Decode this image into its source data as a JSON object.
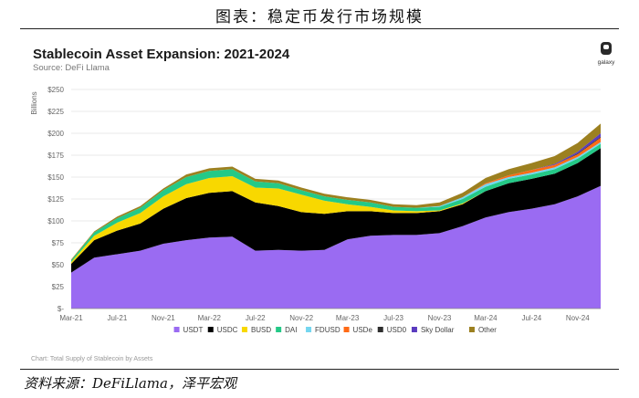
{
  "caption": "图表：稳定币发行市场规模",
  "source_note": "资料来源：DeFiLlama，泽平宏观",
  "chart_data": {
    "type": "area",
    "stacked": true,
    "title": "Stablecoin Asset Expansion: 2021-2024",
    "subtitle": "Source: DeFi Llama",
    "ylabel": "Billions",
    "ylim": [
      0,
      250
    ],
    "y_ticks": [
      "$-",
      "$25",
      "$50",
      "$75",
      "$100",
      "$125",
      "$150",
      "$175",
      "$200",
      "$225",
      "$250"
    ],
    "x_tick_labels": [
      "Mar-21",
      "Jul-21",
      "Nov-21",
      "Mar-22",
      "Jul-22",
      "Nov-22",
      "Mar-23",
      "Jul-23",
      "Nov-23",
      "Mar-24",
      "Jul-24",
      "Nov-24"
    ],
    "x": [
      "Mar-21",
      "May-21",
      "Jul-21",
      "Sep-21",
      "Nov-21",
      "Jan-22",
      "Mar-22",
      "May-22",
      "Jul-22",
      "Sep-22",
      "Nov-22",
      "Jan-23",
      "Mar-23",
      "May-23",
      "Jul-23",
      "Sep-23",
      "Nov-23",
      "Jan-24",
      "Mar-24",
      "May-24",
      "Jul-24",
      "Sep-24",
      "Nov-24",
      "Dec-24"
    ],
    "series": [
      {
        "name": "USDT",
        "color": "#9a6bf2",
        "values": [
          41,
          58,
          62,
          66,
          74,
          78,
          81,
          82,
          66,
          67,
          66,
          67,
          79,
          83,
          84,
          84,
          86,
          94,
          104,
          110,
          114,
          119,
          128,
          140
        ]
      },
      {
        "name": "USDC",
        "color": "#000000",
        "values": [
          10,
          20,
          27,
          31,
          40,
          48,
          51,
          52,
          55,
          50,
          44,
          41,
          32,
          28,
          25,
          25,
          25,
          25,
          30,
          33,
          34,
          35,
          38,
          43
        ]
      },
      {
        "name": "BUSD",
        "color": "#f8d800",
        "values": [
          2,
          5,
          9,
          12,
          14,
          16,
          17,
          17,
          17,
          20,
          20,
          15,
          8,
          5,
          3,
          2,
          1,
          1,
          0,
          0,
          0,
          0,
          0,
          0
        ]
      },
      {
        "name": "DAI",
        "color": "#24c987",
        "values": [
          2,
          4,
          5,
          6,
          7,
          8,
          8,
          8,
          7,
          6,
          5,
          5,
          5,
          5,
          4,
          4,
          4,
          5,
          5,
          5,
          5,
          5,
          5,
          5
        ]
      },
      {
        "name": "FDUSD",
        "color": "#74d6f0",
        "values": [
          0,
          0,
          0,
          0,
          0,
          0,
          0,
          0,
          0,
          0,
          0,
          0,
          0,
          0,
          0,
          0,
          1,
          2,
          3,
          2,
          2,
          2,
          2,
          2
        ]
      },
      {
        "name": "USDe",
        "color": "#ff6a16",
        "values": [
          0,
          0,
          0,
          0,
          0,
          0,
          0,
          0,
          0,
          0,
          0,
          0,
          0,
          0,
          0,
          0,
          0,
          0,
          1,
          2,
          3,
          3,
          3,
          5
        ]
      },
      {
        "name": "USD0",
        "color": "#2e2e2e",
        "values": [
          0,
          0,
          0,
          0,
          0,
          0,
          0,
          0,
          0,
          0,
          0,
          0,
          0,
          0,
          0,
          0,
          0,
          0,
          0,
          0,
          0,
          0,
          1,
          1
        ]
      },
      {
        "name": "Sky Dollar",
        "color": "#5a3bbf",
        "values": [
          0,
          0,
          0,
          0,
          0,
          0,
          0,
          0,
          0,
          0,
          0,
          0,
          0,
          0,
          0,
          0,
          0,
          0,
          0,
          0,
          0,
          1,
          2,
          4
        ]
      },
      {
        "name": "Other",
        "color": "#9c8020",
        "values": [
          1,
          1,
          2,
          2,
          2,
          3,
          3,
          3,
          3,
          3,
          3,
          3,
          3,
          3,
          3,
          3,
          4,
          5,
          6,
          7,
          8,
          9,
          10,
          11
        ]
      }
    ],
    "legend_position": "bottom",
    "footnote": "Chart: Total Supply of Stablecoin by Assets",
    "logo_text": "galaxy"
  }
}
